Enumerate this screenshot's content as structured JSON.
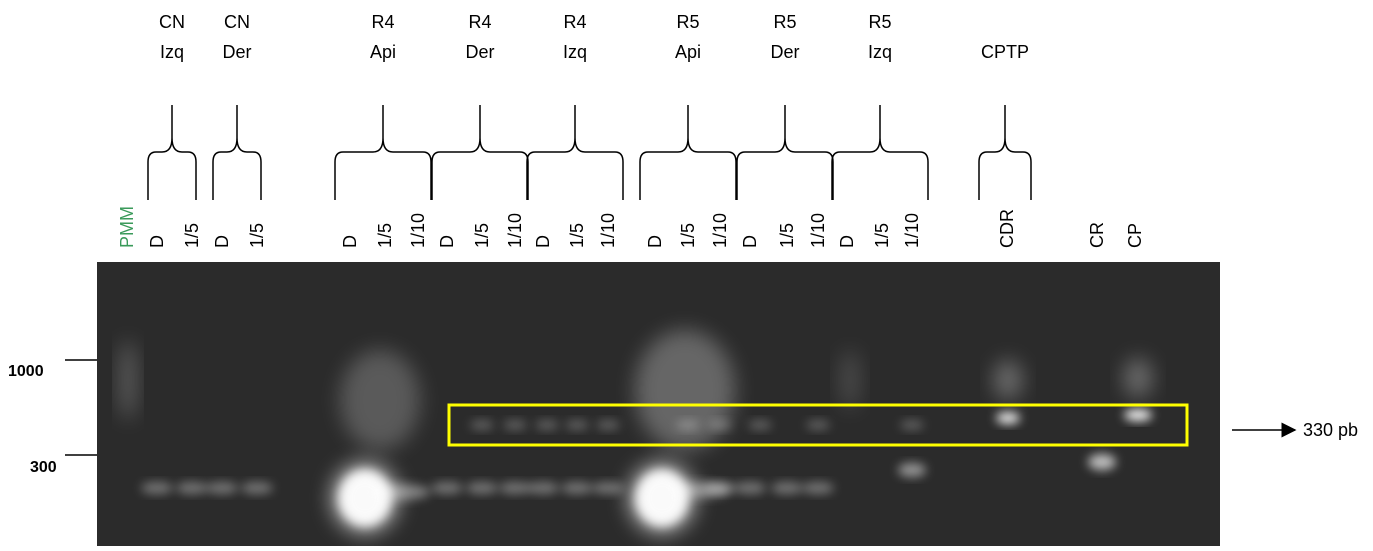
{
  "groups": [
    {
      "line1": "CN",
      "line2": "Izq"
    },
    {
      "line1": "CN",
      "line2": "Der"
    },
    {
      "line1": "R4",
      "line2": "Api"
    },
    {
      "line1": "R4",
      "line2": "Der"
    },
    {
      "line1": "R4",
      "line2": "Izq"
    },
    {
      "line1": "R5",
      "line2": "Api"
    },
    {
      "line1": "R5",
      "line2": "Der"
    },
    {
      "line1": "R5",
      "line2": "Izq"
    },
    {
      "line1": "CPTP"
    }
  ],
  "lanes": [
    "PMM",
    "D",
    "1/5",
    "D",
    "1/5",
    "D",
    "1/5",
    "1/10",
    "D",
    "1/5",
    "1/10",
    "D",
    "1/5",
    "1/10",
    "D",
    "1/5",
    "1/10",
    "D",
    "1/5",
    "1/10",
    "D",
    "1/5",
    "1/10",
    "CDR",
    "CR",
    "CP"
  ],
  "markers": [
    "1000",
    "300"
  ],
  "band_label": "330 pb"
}
